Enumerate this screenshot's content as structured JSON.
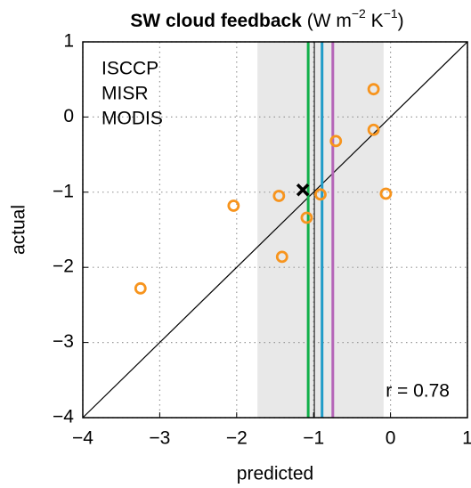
{
  "chart_data": {
    "type": "scatter",
    "title": "SW cloud feedback",
    "title_units": [
      "(W m",
      "−2",
      " K",
      "−1",
      ")"
    ],
    "x_label": "predicted",
    "y_label": "actual",
    "xlim": [
      -4,
      1
    ],
    "ylim": [
      -4,
      1
    ],
    "xticks": [
      {
        "value": -4,
        "label": "−4"
      },
      {
        "value": -3,
        "label": "−3"
      },
      {
        "value": -2,
        "label": "−2"
      },
      {
        "value": -1,
        "label": "−1"
      },
      0,
      1
    ],
    "yticks": [
      {
        "value": -4,
        "label": "−4"
      },
      {
        "value": -3,
        "label": "−3"
      },
      {
        "value": -2,
        "label": "−2"
      },
      {
        "value": -1,
        "label": "−1"
      },
      0,
      1
    ],
    "grid": true,
    "points": {
      "color": "#f7941d",
      "x": [
        -3.25,
        -2.04,
        -1.45,
        -1.41,
        -1.09,
        -0.91,
        -0.71,
        -0.22,
        -0.22,
        -0.06
      ],
      "y": [
        -2.28,
        -1.18,
        -1.05,
        -1.86,
        -1.34,
        -1.03,
        -0.32,
        0.37,
        -0.17,
        -1.02
      ]
    },
    "best_estimate": {
      "x": -1.14,
      "y": -0.97,
      "color": "#000000"
    },
    "shaded_range": [
      -1.73,
      -0.09
    ],
    "mean_line": -0.99,
    "observations": [
      {
        "name": "ISCCP",
        "color": "#1f9bc8",
        "value": -0.89
      },
      {
        "name": "MISR",
        "color": "#12b04b",
        "value": -1.07
      },
      {
        "name": "MODIS",
        "color": "#b565b8",
        "value": -0.75
      }
    ],
    "annotation": "r = 0.78"
  }
}
